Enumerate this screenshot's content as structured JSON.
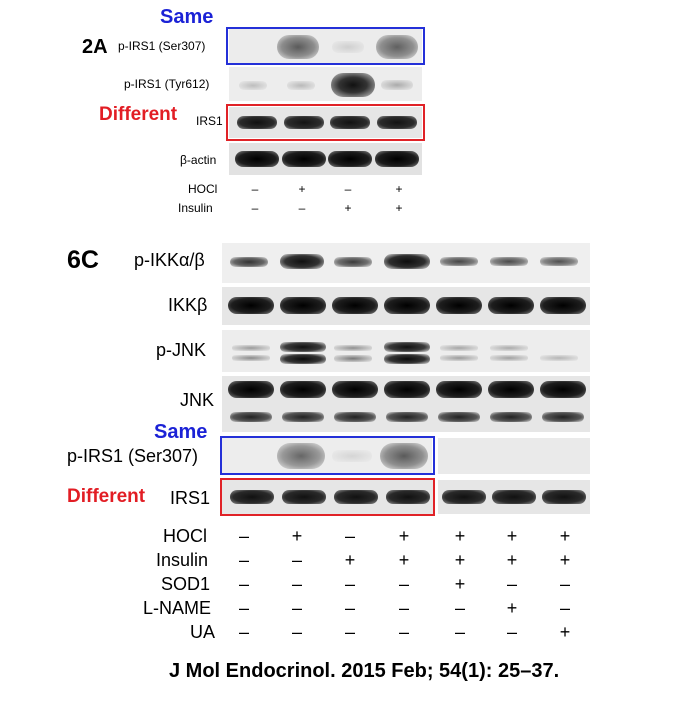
{
  "panel_2a": {
    "figure_label": "2A",
    "same_label": "Same",
    "different_label": "Different",
    "rows": [
      {
        "label": "p-IRS1 (Ser307)"
      },
      {
        "label": "p-IRS1 (Tyr612)"
      },
      {
        "label": "IRS1"
      },
      {
        "label": "β-actin"
      }
    ],
    "conditions": [
      {
        "label": "HOCl",
        "signs": [
          "–",
          "+",
          "–",
          "+"
        ]
      },
      {
        "label": "Insulin",
        "signs": [
          "–",
          "–",
          "+",
          "+"
        ]
      }
    ]
  },
  "panel_6c": {
    "figure_label": "6C",
    "same_label": "Same",
    "different_label": "Different",
    "rows": [
      {
        "label": "p-IKKα/β"
      },
      {
        "label": "IKKβ"
      },
      {
        "label": "p-JNK"
      },
      {
        "label": "JNK"
      },
      {
        "label": "p-IRS1 (Ser307)"
      },
      {
        "label": "IRS1"
      }
    ],
    "conditions": [
      {
        "label": "HOCl",
        "signs": [
          "–",
          "+",
          "–",
          "+",
          "+",
          "+",
          "+"
        ]
      },
      {
        "label": "Insulin",
        "signs": [
          "–",
          "–",
          "+",
          "+",
          "+",
          "+",
          "+"
        ]
      },
      {
        "label": "SOD1",
        "signs": [
          "–",
          "–",
          "–",
          "–",
          "+",
          "–",
          "–"
        ]
      },
      {
        "label": "L-NAME",
        "signs": [
          "–",
          "–",
          "–",
          "–",
          "–",
          "+",
          "–"
        ]
      },
      {
        "label": "UA",
        "signs": [
          "–",
          "–",
          "–",
          "–",
          "–",
          "–",
          "+"
        ]
      }
    ]
  },
  "citation": "J Mol Endocrinol. 2015 Feb; 54(1): 25–37."
}
